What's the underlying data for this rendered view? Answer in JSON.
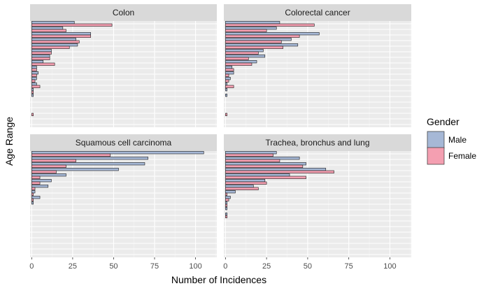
{
  "chart_data": {
    "type": "bar",
    "orientation": "horizontal",
    "xlabel": "Number of Incidences",
    "ylabel": "Age Range",
    "xlim": [
      -1,
      113
    ],
    "x_ticks": [
      "0",
      "25",
      "50",
      "75",
      "100"
    ],
    "y_tick_labels_shown": false,
    "legend": {
      "title": "Gender",
      "position": "right",
      "entries": [
        {
          "name": "Male",
          "color": "#a6b8d6"
        },
        {
          "name": "Female",
          "color": "#f49fb1"
        }
      ]
    },
    "grid": true,
    "panels": [
      {
        "title": "Colon",
        "groups": [
          {
            "male": 26,
            "female": 49
          },
          {
            "male": 19,
            "female": 21
          },
          {
            "male": 36,
            "female": 36
          },
          {
            "male": 27,
            "female": 29
          },
          {
            "male": 28,
            "female": 23
          },
          {
            "male": 12,
            "female": 12
          },
          {
            "male": 11,
            "female": 11
          },
          {
            "male": 7,
            "female": 14
          },
          {
            "male": 3,
            "female": 3
          },
          {
            "male": 4,
            "female": 3
          },
          {
            "male": 3,
            "female": 2
          },
          {
            "male": 3,
            "female": 5
          },
          {
            "male": 1,
            "female": 1
          },
          {
            "male": 1,
            "female": 0
          },
          {
            "male": 0,
            "female": 0
          },
          {
            "male": 0,
            "female": 0
          },
          {
            "male": 0,
            "female": 1
          },
          {
            "male": 0,
            "female": 0
          },
          {
            "male": 0,
            "female": 0
          }
        ]
      },
      {
        "title": "Colorectal cancer",
        "groups": [
          {
            "male": 33,
            "female": 54
          },
          {
            "male": 31,
            "female": 25
          },
          {
            "male": 57,
            "female": 45
          },
          {
            "male": 40,
            "female": 34
          },
          {
            "male": 44,
            "female": 35
          },
          {
            "male": 23,
            "female": 20
          },
          {
            "male": 24,
            "female": 14
          },
          {
            "male": 19,
            "female": 16
          },
          {
            "male": 4,
            "female": 5
          },
          {
            "male": 5,
            "female": 2
          },
          {
            "male": 3,
            "female": 2
          },
          {
            "male": 1,
            "female": 5
          },
          {
            "male": 1,
            "female": 0
          },
          {
            "male": 1,
            "female": 0
          },
          {
            "male": 0,
            "female": 0
          },
          {
            "male": 0,
            "female": 0
          },
          {
            "male": 0,
            "female": 1
          },
          {
            "male": 0,
            "female": 0
          },
          {
            "male": 0,
            "female": 0
          }
        ]
      },
      {
        "title": "Squamous cell carcinoma",
        "groups": [
          {
            "male": 105,
            "female": 48
          },
          {
            "male": 71,
            "female": 27
          },
          {
            "male": 69,
            "female": 21
          },
          {
            "male": 53,
            "female": 15
          },
          {
            "male": 21,
            "female": 5
          },
          {
            "male": 12,
            "female": 5
          },
          {
            "male": 10,
            "female": 2
          },
          {
            "male": 2,
            "female": 1
          },
          {
            "male": 5,
            "female": 1
          },
          {
            "male": 1,
            "female": 0
          },
          {
            "male": 0,
            "female": 0
          },
          {
            "male": 0,
            "female": 0
          },
          {
            "male": 0,
            "female": 0
          },
          {
            "male": 0,
            "female": 0
          },
          {
            "male": 0,
            "female": 0
          },
          {
            "male": 0,
            "female": 0
          },
          {
            "male": 0,
            "female": 0
          },
          {
            "male": 0,
            "female": 0
          },
          {
            "male": 0,
            "female": 0
          }
        ]
      },
      {
        "title": "Trachea, bronchus and lung",
        "groups": [
          {
            "male": 31,
            "female": 29
          },
          {
            "male": 45,
            "female": 33
          },
          {
            "male": 49,
            "female": 47
          },
          {
            "male": 61,
            "female": 66
          },
          {
            "male": 39,
            "female": 49
          },
          {
            "male": 24,
            "female": 25
          },
          {
            "male": 17,
            "female": 20
          },
          {
            "male": 6,
            "female": 1
          },
          {
            "male": 3,
            "female": 2
          },
          {
            "male": 1,
            "female": 1
          },
          {
            "male": 1,
            "female": 0
          },
          {
            "male": 1,
            "female": 1
          },
          {
            "male": 0,
            "female": 0
          },
          {
            "male": 0,
            "female": 0
          },
          {
            "male": 0,
            "female": 0
          },
          {
            "male": 0,
            "female": 0
          },
          {
            "male": 0,
            "female": 0
          },
          {
            "male": 0,
            "female": 0
          },
          {
            "male": 0,
            "female": 0
          }
        ]
      }
    ]
  }
}
